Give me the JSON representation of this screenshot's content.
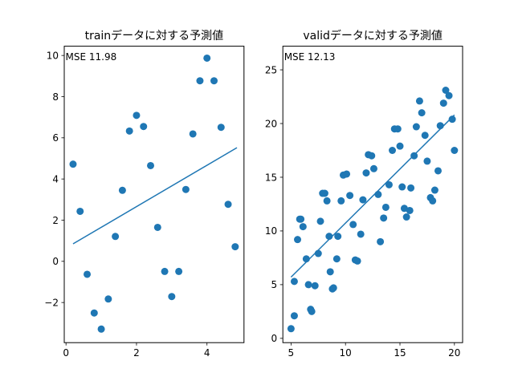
{
  "chart_data": [
    {
      "type": "scatter",
      "title": "trainデータに対する予測値",
      "annotation": "MSE 11.98",
      "xlim": [
        -0.05,
        5.05
      ],
      "ylim": [
        -3.95,
        10.45
      ],
      "xticks": [
        0,
        2,
        4
      ],
      "yticks": [
        -2,
        0,
        2,
        4,
        6,
        8,
        10
      ],
      "xtick_labels": [
        "0",
        "2",
        "4"
      ],
      "ytick_labels": [
        "−2",
        "0",
        "2",
        "4",
        "6",
        "8",
        "10"
      ],
      "point_color": "#1f77b4",
      "line_color": "#1f77b4",
      "points": {
        "x": [
          0.2,
          0.4,
          0.6,
          0.8,
          1.0,
          1.2,
          1.4,
          1.6,
          1.8,
          2.0,
          2.2,
          2.4,
          2.6,
          2.8,
          3.0,
          3.2,
          3.4,
          3.6,
          3.8,
          4.0,
          4.2,
          4.4,
          4.6,
          4.8
        ],
        "y": [
          4.72,
          2.43,
          -0.63,
          -2.51,
          -3.29,
          -1.83,
          1.21,
          3.45,
          6.33,
          7.09,
          6.55,
          4.65,
          1.65,
          -0.49,
          -1.71,
          -0.49,
          3.49,
          6.19,
          8.77,
          9.87,
          8.77,
          6.51,
          2.77,
          0.71
        ]
      },
      "fit_line": {
        "x": [
          0.2,
          4.85
        ],
        "y": [
          0.85,
          5.52
        ]
      }
    },
    {
      "type": "scatter",
      "title": "validデータに対する予測値",
      "annotation": "MSE 12.13",
      "xlim": [
        4.25,
        20.75
      ],
      "ylim": [
        -0.4,
        27.2
      ],
      "xticks": [
        5,
        10,
        15,
        20
      ],
      "yticks": [
        0,
        5,
        10,
        15,
        20,
        25
      ],
      "xtick_labels": [
        "5",
        "10",
        "15",
        "20"
      ],
      "ytick_labels": [
        "0",
        "5",
        "10",
        "15",
        "20",
        "25"
      ],
      "point_color": "#1f77b4",
      "line_color": "#1f77b4",
      "points": {
        "x": [
          5.0,
          5.3,
          5.3,
          5.6,
          5.8,
          5.9,
          6.1,
          6.4,
          6.6,
          6.8,
          6.9,
          7.2,
          7.5,
          7.7,
          7.9,
          8.1,
          8.3,
          8.5,
          8.6,
          8.8,
          8.9,
          9.2,
          9.3,
          9.6,
          9.8,
          10.1,
          10.4,
          10.7,
          10.9,
          11.1,
          11.4,
          11.6,
          11.9,
          12.1,
          12.4,
          12.6,
          13.0,
          13.2,
          13.5,
          13.7,
          14.0,
          14.3,
          14.5,
          14.8,
          15.0,
          15.2,
          15.4,
          15.6,
          15.9,
          16.0,
          16.3,
          16.5,
          16.8,
          17.0,
          17.3,
          17.5,
          17.8,
          18.0,
          18.2,
          18.5,
          18.7,
          19.0,
          19.2,
          19.5,
          19.8,
          20.0
        ],
        "y": [
          0.9,
          2.1,
          5.3,
          9.2,
          11.1,
          11.1,
          10.4,
          7.4,
          5.0,
          2.7,
          2.5,
          4.9,
          7.9,
          10.9,
          13.5,
          13.5,
          12.8,
          9.5,
          6.2,
          4.6,
          4.7,
          7.4,
          9.5,
          12.8,
          15.2,
          15.3,
          13.3,
          10.6,
          7.3,
          7.2,
          9.7,
          12.9,
          15.4,
          17.1,
          17.0,
          15.8,
          13.4,
          9.0,
          11.2,
          12.2,
          14.3,
          17.5,
          19.5,
          19.5,
          17.9,
          14.1,
          12.1,
          11.3,
          11.9,
          14.0,
          17.0,
          19.7,
          22.1,
          21.0,
          18.9,
          16.5,
          13.1,
          12.8,
          13.8,
          15.6,
          19.8,
          21.9,
          23.1,
          22.6,
          20.4,
          17.5
        ]
      },
      "fit_line": {
        "x": [
          5.0,
          20.0
        ],
        "y": [
          5.7,
          20.8
        ]
      }
    }
  ]
}
